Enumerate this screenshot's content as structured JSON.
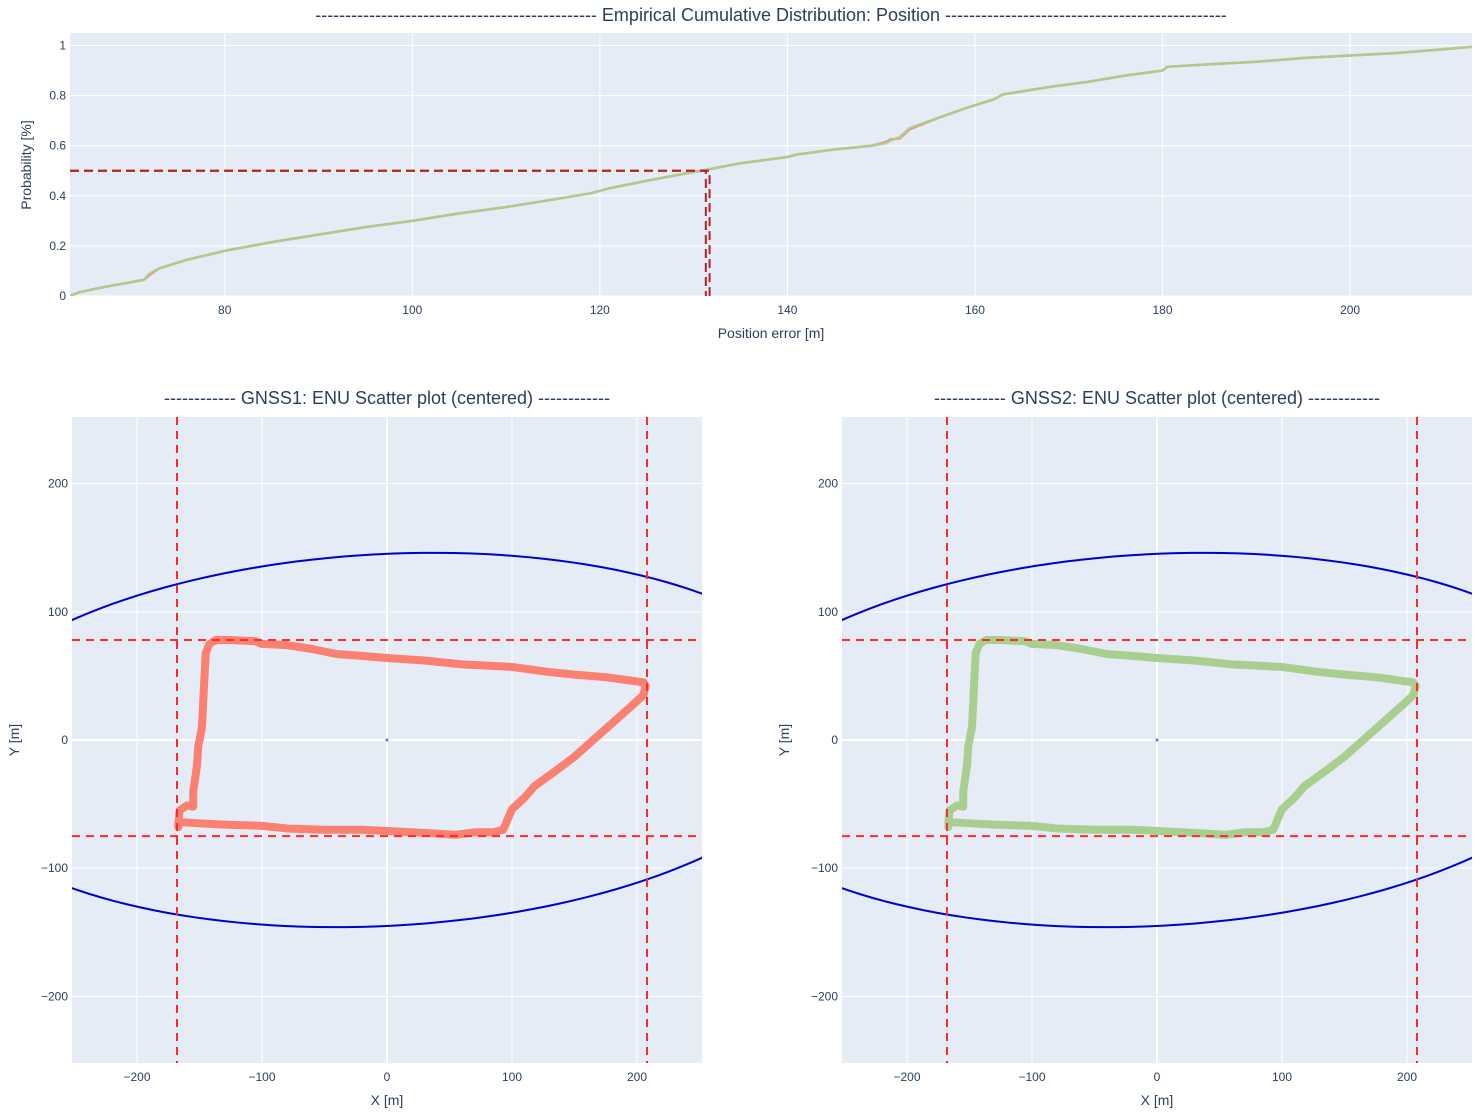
{
  "chart_data": [
    {
      "type": "line",
      "title": "-----------------------------------------------  Empirical Cumulative Distribution: Position  -----------------------------------------------",
      "xlabel": "Position error [m]",
      "ylabel": "Probability [%]",
      "xlim": [
        63.5,
        213
      ],
      "ylim": [
        0,
        1.05
      ],
      "xticks": [
        "80",
        "100",
        "120",
        "140",
        "160",
        "180",
        "200"
      ],
      "yticks": [
        "0",
        "0.2",
        "0.4",
        "0.6",
        "0.8",
        "1"
      ],
      "grid": true,
      "series": [
        {
          "color": "#fa8072",
          "x": [
            63.5,
            64.5,
            67,
            70,
            71.4,
            71.7,
            72.2,
            73,
            76,
            80,
            85,
            90,
            95,
            100,
            105,
            110,
            115,
            119,
            121,
            125,
            130,
            131.5,
            135,
            140,
            141,
            145,
            149,
            150.5,
            151,
            152,
            153,
            156,
            159,
            162,
            163,
            168,
            172,
            176,
            180,
            180.5,
            185,
            190,
            195,
            200,
            205,
            210,
            213
          ],
          "y": [
            0.0,
            0.015,
            0.035,
            0.055,
            0.065,
            0.075,
            0.09,
            0.11,
            0.145,
            0.18,
            0.215,
            0.245,
            0.275,
            0.3,
            0.33,
            0.355,
            0.385,
            0.41,
            0.43,
            0.46,
            0.495,
            0.505,
            0.53,
            0.555,
            0.565,
            0.585,
            0.6,
            0.615,
            0.625,
            0.63,
            0.665,
            0.71,
            0.75,
            0.785,
            0.805,
            0.835,
            0.855,
            0.88,
            0.9,
            0.915,
            0.925,
            0.935,
            0.95,
            0.96,
            0.97,
            0.985,
            0.995
          ]
        },
        {
          "color": "#a8cf90",
          "x": [
            63.5,
            64.5,
            67,
            70,
            71.4,
            71.7,
            72.2,
            73,
            76,
            80,
            85,
            90,
            95,
            100,
            105,
            110,
            115,
            119,
            121,
            125,
            130,
            131.5,
            135,
            140,
            141,
            145,
            149,
            150.5,
            151,
            152,
            153,
            156,
            159,
            162,
            163,
            168,
            172,
            176,
            180,
            180.5,
            185,
            190,
            195,
            200,
            205,
            210,
            213
          ],
          "y": [
            0.0,
            0.015,
            0.035,
            0.055,
            0.065,
            0.08,
            0.095,
            0.11,
            0.145,
            0.18,
            0.215,
            0.245,
            0.275,
            0.3,
            0.33,
            0.355,
            0.385,
            0.41,
            0.43,
            0.46,
            0.495,
            0.505,
            0.53,
            0.555,
            0.565,
            0.585,
            0.6,
            0.61,
            0.62,
            0.635,
            0.67,
            0.71,
            0.75,
            0.785,
            0.805,
            0.835,
            0.855,
            0.88,
            0.9,
            0.915,
            0.925,
            0.935,
            0.95,
            0.96,
            0.97,
            0.985,
            0.995
          ]
        },
        {
          "color": "#b22222",
          "dash": true,
          "x": [
            63.5,
            131.3,
            131.3
          ],
          "y": [
            0.5,
            0.5,
            0
          ]
        },
        {
          "color": "#b22222",
          "dash": true,
          "x": [
            63.5,
            131.7,
            131.7
          ],
          "y": [
            0.5,
            0.5,
            0
          ]
        }
      ]
    },
    {
      "type": "scatter",
      "title": "------------ GNSS1: ENU Scatter plot (centered) ------------",
      "xlabel": "X [m]",
      "ylabel": "Y [m]",
      "xlim": [
        -252,
        252
      ],
      "ylim": [
        -252,
        252
      ],
      "xticks": [
        "−200",
        "−100",
        "0",
        "100",
        "200"
      ],
      "yticks": [
        "−200",
        "−100",
        "0",
        "100",
        "200"
      ],
      "grid": true,
      "track_color": "#fa8072",
      "track": [
        [
          -167,
          -68
        ],
        [
          -166,
          -55
        ],
        [
          -160,
          -51
        ],
        [
          -155,
          -52
        ],
        [
          -155,
          -40
        ],
        [
          -152,
          -20
        ],
        [
          -151,
          -5
        ],
        [
          -148,
          10
        ],
        [
          -147,
          30
        ],
        [
          -146,
          50
        ],
        [
          -145,
          68
        ],
        [
          -142,
          75
        ],
        [
          -137,
          78
        ],
        [
          -125,
          78
        ],
        [
          -105,
          77
        ],
        [
          -100,
          75
        ],
        [
          -80,
          74
        ],
        [
          -60,
          71
        ],
        [
          -40,
          67
        ],
        [
          -25,
          66
        ],
        [
          0,
          64
        ],
        [
          30,
          62
        ],
        [
          60,
          59
        ],
        [
          100,
          57
        ],
        [
          130,
          53
        ],
        [
          150,
          51
        ],
        [
          175,
          49
        ],
        [
          190,
          47
        ],
        [
          205,
          45
        ],
        [
          207,
          42
        ],
        [
          205,
          35
        ],
        [
          195,
          26
        ],
        [
          180,
          13
        ],
        [
          165,
          0
        ],
        [
          150,
          -13
        ],
        [
          135,
          -24
        ],
        [
          118,
          -36
        ],
        [
          110,
          -45
        ],
        [
          100,
          -54
        ],
        [
          93,
          -70
        ],
        [
          85,
          -72
        ],
        [
          70,
          -72
        ],
        [
          55,
          -74
        ],
        [
          40,
          -73
        ],
        [
          20,
          -72
        ],
        [
          0,
          -71
        ],
        [
          -20,
          -70
        ],
        [
          -50,
          -70
        ],
        [
          -80,
          -69
        ],
        [
          -100,
          -67
        ],
        [
          -130,
          -66
        ],
        [
          -150,
          -65
        ],
        [
          -167,
          -64
        ]
      ],
      "ellipse": {
        "center": [
          -2,
          0
        ],
        "rx": 361,
        "ry": 145,
        "angle_deg": 3
      },
      "ellipse_color": "#0000cd",
      "vlines": [
        -168,
        208
      ],
      "hlines": [
        78,
        -75
      ],
      "ref_line_color": "#ff2a2a"
    },
    {
      "type": "scatter",
      "title": "------------ GNSS2: ENU Scatter plot (centered) ------------",
      "xlabel": "X [m]",
      "ylabel": "Y [m]",
      "xlim": [
        -252,
        252
      ],
      "ylim": [
        -252,
        252
      ],
      "xticks": [
        "−200",
        "−100",
        "0",
        "100",
        "200"
      ],
      "yticks": [
        "−200",
        "−100",
        "0",
        "100",
        "200"
      ],
      "grid": true,
      "track_color": "#a8cf90",
      "track": [
        [
          -167,
          -68
        ],
        [
          -166,
          -55
        ],
        [
          -160,
          -51
        ],
        [
          -155,
          -52
        ],
        [
          -155,
          -40
        ],
        [
          -152,
          -20
        ],
        [
          -151,
          -5
        ],
        [
          -148,
          10
        ],
        [
          -147,
          30
        ],
        [
          -146,
          50
        ],
        [
          -145,
          68
        ],
        [
          -142,
          75
        ],
        [
          -137,
          78
        ],
        [
          -125,
          78
        ],
        [
          -105,
          77
        ],
        [
          -100,
          75
        ],
        [
          -80,
          74
        ],
        [
          -60,
          71
        ],
        [
          -40,
          67
        ],
        [
          -25,
          66
        ],
        [
          0,
          64
        ],
        [
          30,
          62
        ],
        [
          60,
          59
        ],
        [
          100,
          57
        ],
        [
          130,
          53
        ],
        [
          150,
          51
        ],
        [
          175,
          49
        ],
        [
          190,
          47
        ],
        [
          205,
          45
        ],
        [
          207,
          42
        ],
        [
          205,
          35
        ],
        [
          195,
          26
        ],
        [
          180,
          13
        ],
        [
          165,
          0
        ],
        [
          150,
          -13
        ],
        [
          135,
          -24
        ],
        [
          118,
          -36
        ],
        [
          110,
          -45
        ],
        [
          100,
          -54
        ],
        [
          93,
          -70
        ],
        [
          85,
          -72
        ],
        [
          70,
          -72
        ],
        [
          55,
          -74
        ],
        [
          40,
          -73
        ],
        [
          20,
          -72
        ],
        [
          0,
          -71
        ],
        [
          -20,
          -70
        ],
        [
          -50,
          -70
        ],
        [
          -80,
          -69
        ],
        [
          -100,
          -67
        ],
        [
          -130,
          -66
        ],
        [
          -150,
          -65
        ],
        [
          -167,
          -64
        ]
      ],
      "ellipse": {
        "center": [
          -2,
          0
        ],
        "rx": 361,
        "ry": 145,
        "angle_deg": 3
      },
      "ellipse_color": "#0000cd",
      "vlines": [
        -168,
        208
      ],
      "hlines": [
        78,
        -75
      ],
      "ref_line_color": "#ff2a2a"
    }
  ]
}
